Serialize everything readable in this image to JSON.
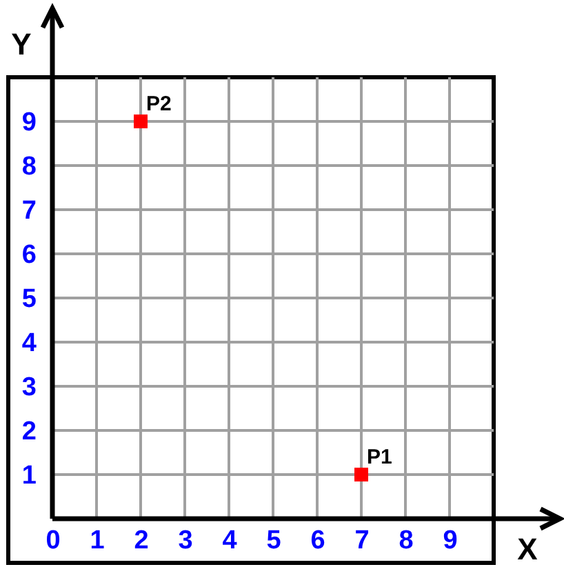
{
  "chart_data": {
    "type": "scatter",
    "xlabel": "X",
    "ylabel": "Y",
    "x": [
      7,
      2
    ],
    "series": [
      {
        "color": "#ff0000",
        "values": [
          1,
          9
        ]
      }
    ],
    "marker": "square",
    "grid": true,
    "xlim": [
      -1,
      10
    ],
    "ylim": [
      -1,
      10
    ],
    "xticks": [
      0,
      1,
      2,
      3,
      4,
      5,
      6,
      7,
      8,
      9
    ],
    "yticks": [
      1,
      2,
      3,
      4,
      5,
      6,
      7,
      8,
      9
    ],
    "annotations": [
      {
        "text": "P1",
        "x": 7,
        "y": 1
      },
      {
        "text": "P2",
        "x": 2,
        "y": 9
      }
    ]
  }
}
